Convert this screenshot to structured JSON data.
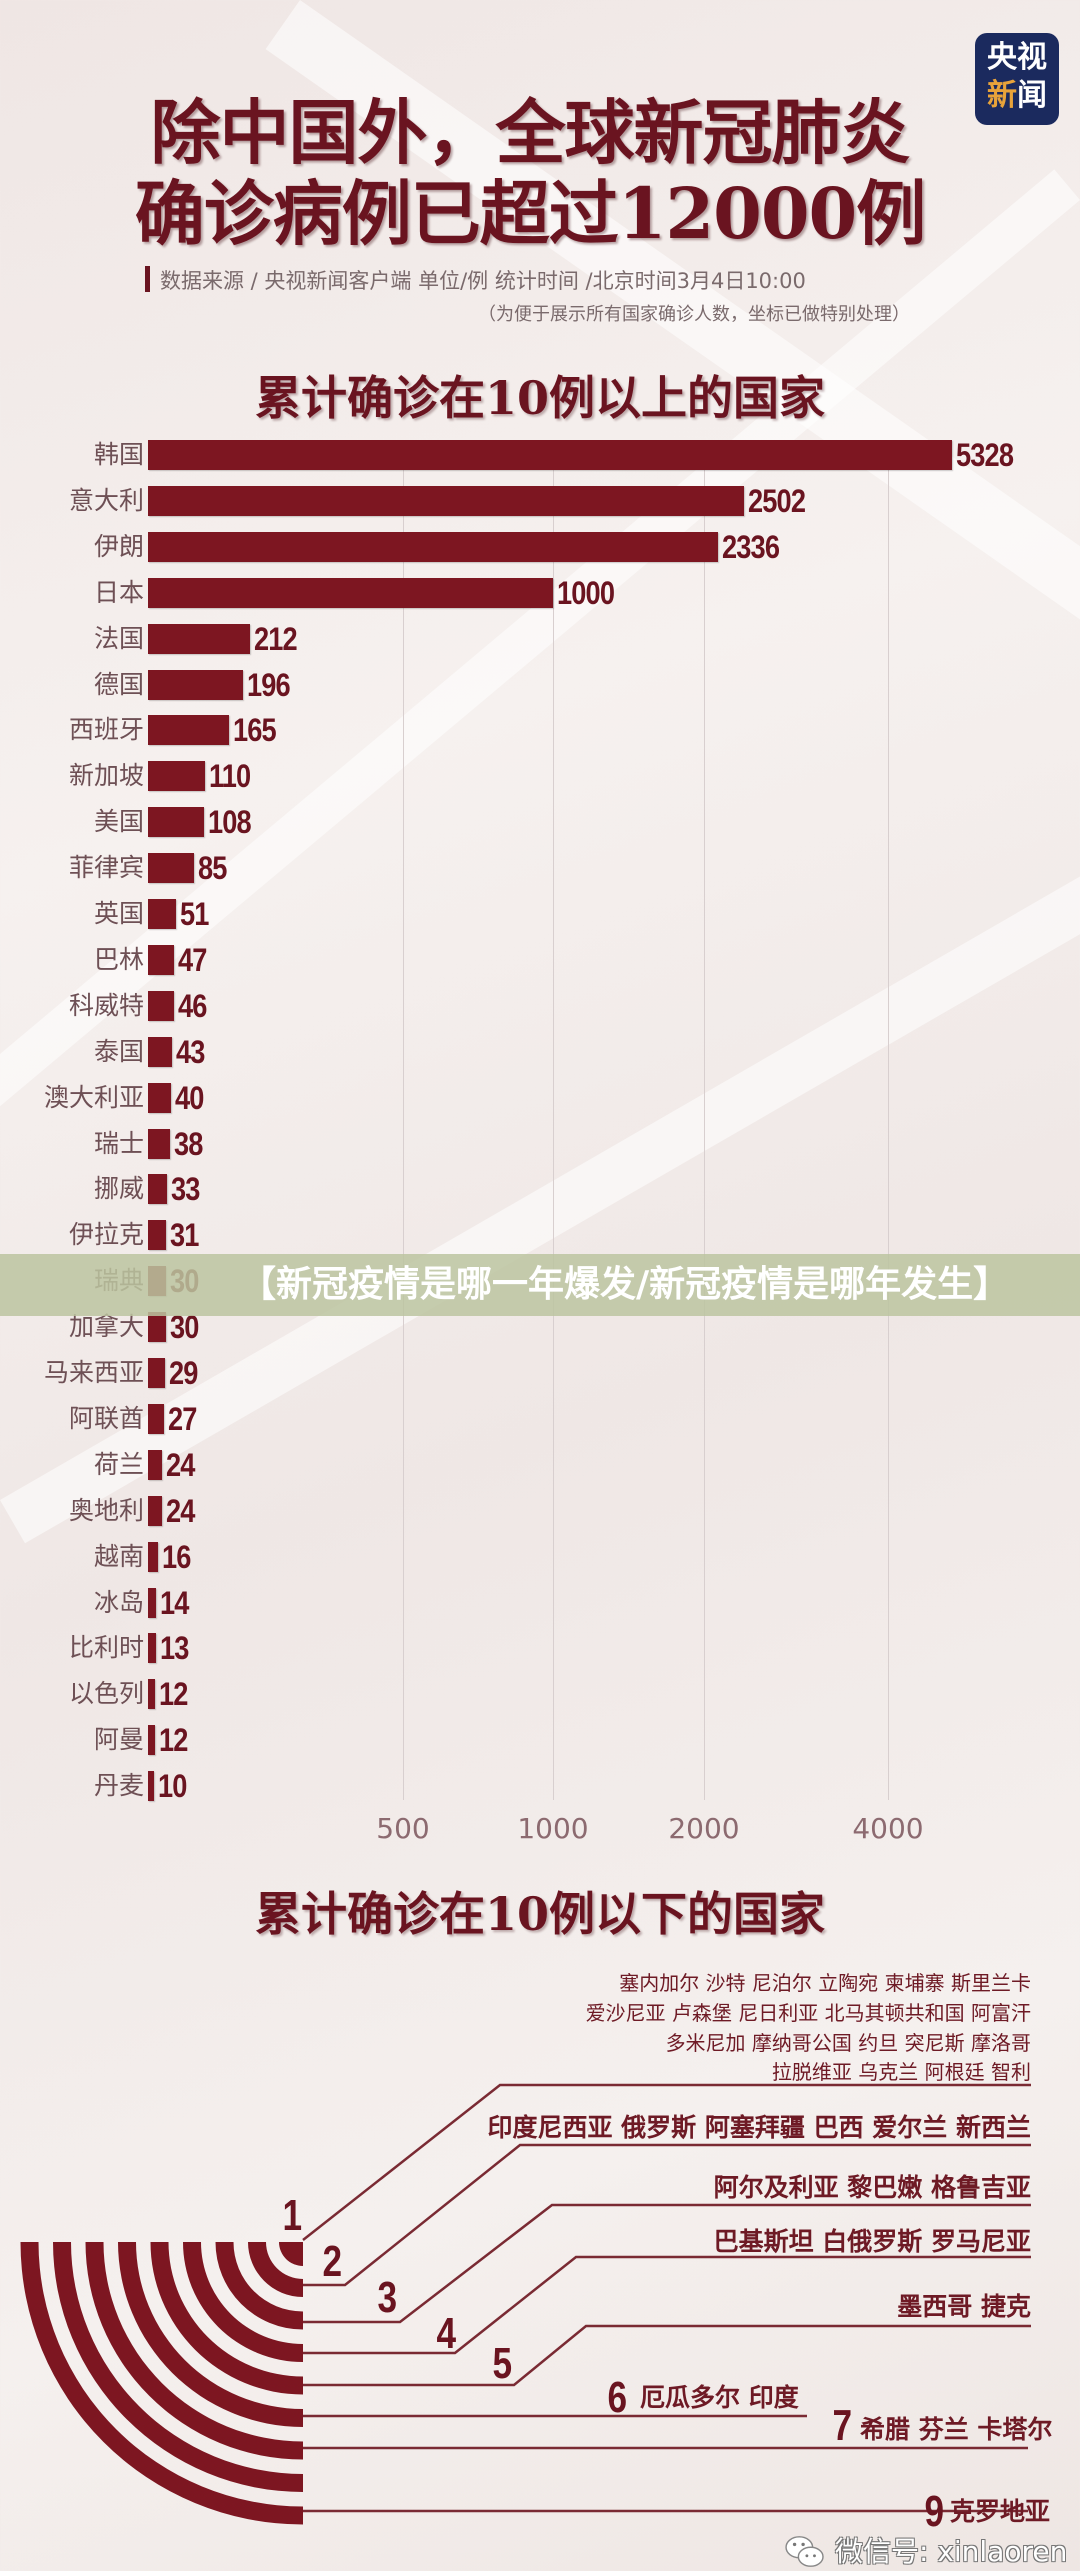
{
  "logo": {
    "line1": "央视",
    "line2_a": "新",
    "line2_b": "闻"
  },
  "title": {
    "line1": "除中国外，全球新冠肺炎",
    "line2": "确诊病例已超过12000例"
  },
  "source_line": "数据来源 / 央视新闻客户端  单位/例   统计时间 /北京时间3月4日10:00",
  "note": "（为便于展示所有国家确诊人数，坐标已做特别处理）",
  "banner": "【新冠疫情是哪一年爆发/新冠疫情是哪年发生】",
  "colors": {
    "bar": "#7d1621",
    "title": "#6a1420",
    "logo_bg": "#1b2a5e",
    "banner": "#bcc4a0"
  },
  "chart_data": {
    "type": "bar",
    "orientation": "horizontal",
    "title": "累计确诊在10例以上的国家",
    "categories": [
      "韩国",
      "意大利",
      "伊朗",
      "日本",
      "法国",
      "德国",
      "西班牙",
      "新加坡",
      "美国",
      "菲律宾",
      "英国",
      "巴林",
      "科威特",
      "泰国",
      "澳大利亚",
      "瑞士",
      "挪威",
      "伊拉克",
      "瑞典",
      "加拿大",
      "马来西亚",
      "阿联酋",
      "荷兰",
      "奥地利",
      "越南",
      "冰岛",
      "比利时",
      "以色列",
      "阿曼",
      "丹麦"
    ],
    "values": [
      5328,
      2502,
      2336,
      1000,
      212,
      196,
      165,
      110,
      108,
      85,
      51,
      47,
      46,
      43,
      40,
      38,
      33,
      31,
      30,
      30,
      29,
      27,
      24,
      24,
      16,
      14,
      13,
      12,
      12,
      10
    ],
    "x_ticks": [
      500,
      1000,
      2000,
      4000
    ],
    "x_scale": "non-linear (specially adjusted)",
    "grid": true
  },
  "below10": {
    "title": "累计确诊在10例以下的国家",
    "groups": [
      {
        "number": "1",
        "rows": [
          "塞内加尔  沙特  尼泊尔  立陶宛  柬埔寨  斯里兰卡",
          "爱沙尼亚  卢森堡  尼日利亚  北马其顿共和国  阿富汗",
          "多米尼加  摩纳哥公国  约旦  突尼斯  摩洛哥",
          "拉脱维亚  乌克兰  阿根廷  智利"
        ]
      },
      {
        "number": "2",
        "rows": [
          "印度尼西亚  俄罗斯  阿塞拜疆  巴西  爱尔兰  新西兰"
        ]
      },
      {
        "number": "3",
        "rows": [
          "阿尔及利亚 黎巴嫩  格鲁吉亚"
        ]
      },
      {
        "number": "4",
        "rows": [
          "巴基斯坦  白俄罗斯  罗马尼亚"
        ]
      },
      {
        "number": "5",
        "rows": [
          "墨西哥  捷克"
        ]
      },
      {
        "number": "6",
        "rows": [
          "厄瓜多尔  印度"
        ]
      },
      {
        "number": "7",
        "rows": [
          "希腊  芬兰  卡塔尔"
        ]
      },
      {
        "number": "9",
        "rows": [
          "克罗地亚"
        ]
      }
    ]
  },
  "watermark": {
    "icon": "wechat-icon",
    "text": "微信号: xinlaoren"
  }
}
